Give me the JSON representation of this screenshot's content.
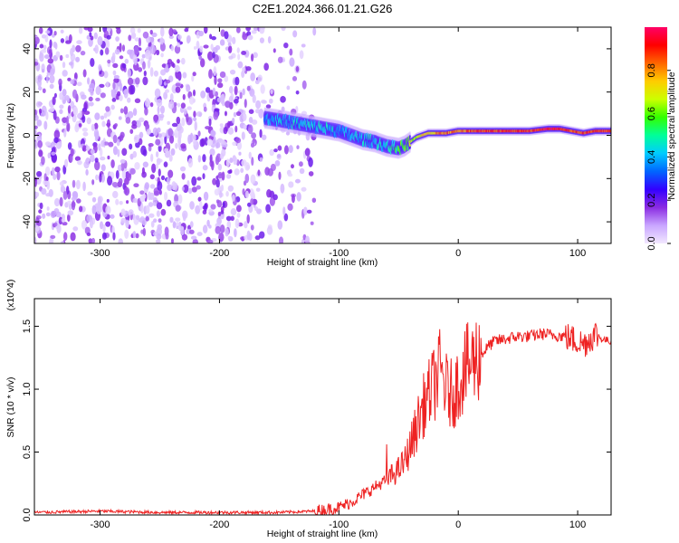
{
  "figure": {
    "title": "C2E1.2024.366.01.21.G26"
  },
  "chart_data": [
    {
      "type": "heatmap",
      "name": "spectrogram",
      "xlabel": "Height of straight line (km)",
      "ylabel": "Frequency (Hz)",
      "xlim": [
        -355,
        128
      ],
      "ylim": [
        -50,
        50
      ],
      "xticks": [
        -300,
        -200,
        -100,
        0,
        100
      ],
      "yticks": [
        -40,
        -20,
        0,
        20,
        40
      ],
      "colorbar": {
        "label": "Normalized spectral amplitude",
        "range": [
          0,
          1
        ],
        "ticks": [
          "0.0",
          "0.2",
          "0.4",
          "0.6",
          "0.8"
        ],
        "colors": [
          "#f2e8ff",
          "#c9a6ff",
          "#8a2be2",
          "#3300ff",
          "#0066ff",
          "#00ccff",
          "#00ff99",
          "#33ff00",
          "#ccff00",
          "#ffcc00",
          "#ff6600",
          "#ff0000",
          "#ff0066"
        ]
      },
      "noise_region": {
        "x_from": -355,
        "x_to": -130,
        "density": "high"
      },
      "signal_track": {
        "x": [
          -162,
          -150,
          -140,
          -130,
          -120,
          -110,
          -100,
          -90,
          -80,
          -70,
          -60,
          -50,
          -45,
          -40,
          -35,
          -30,
          -25,
          -20,
          -10,
          0,
          20,
          40,
          60,
          75,
          85,
          95,
          105,
          115,
          128
        ],
        "frequency": [
          8,
          7,
          6,
          5,
          4,
          3,
          2,
          0,
          -2,
          -3,
          -5,
          -6,
          -5,
          -3,
          -1,
          0,
          1,
          1,
          1,
          2,
          2,
          2,
          2,
          3,
          3,
          2,
          1,
          2,
          2
        ],
        "amplitude": [
          0.45,
          0.45,
          0.5,
          0.5,
          0.5,
          0.5,
          0.45,
          0.45,
          0.5,
          0.5,
          0.5,
          0.6,
          0.65,
          0.7,
          0.75,
          0.8,
          0.8,
          0.85,
          0.9,
          0.9,
          0.95,
          0.95,
          0.95,
          1.0,
          1.0,
          0.95,
          0.95,
          0.95,
          0.95
        ]
      }
    },
    {
      "type": "line",
      "name": "snr",
      "xlabel": "Height of straight line (km)",
      "ylabel": "SNR (10 * v/v)",
      "y_multiplier": "(x10^4)",
      "xlim": [
        -355,
        128
      ],
      "ylim": [
        0,
        1.72
      ],
      "xticks": [
        -300,
        -200,
        -100,
        0,
        100
      ],
      "yticks": [
        "0.0",
        "0.5",
        "1.0",
        "1.5"
      ],
      "series": [
        {
          "color": "#ee2222",
          "x": [
            -355,
            -300,
            -250,
            -200,
            -150,
            -120,
            -100,
            -90,
            -80,
            -70,
            -60,
            -50,
            -45,
            -40,
            -35,
            -30,
            -25,
            -20,
            -15,
            -10,
            -5,
            0,
            5,
            10,
            15,
            20,
            25,
            30,
            40,
            50,
            60,
            70,
            80,
            90,
            95,
            100,
            105,
            110,
            115,
            120,
            128
          ],
          "y": [
            0.02,
            0.03,
            0.02,
            0.02,
            0.02,
            0.03,
            0.06,
            0.1,
            0.16,
            0.22,
            0.28,
            0.36,
            0.42,
            0.55,
            0.7,
            0.85,
            0.95,
            1.05,
            1.15,
            1.0,
            0.95,
            1.05,
            1.15,
            1.2,
            1.25,
            1.28,
            1.34,
            1.38,
            1.4,
            1.42,
            1.42,
            1.44,
            1.43,
            1.42,
            1.4,
            1.38,
            1.36,
            1.4,
            1.44,
            1.4,
            1.38
          ]
        }
      ]
    }
  ]
}
